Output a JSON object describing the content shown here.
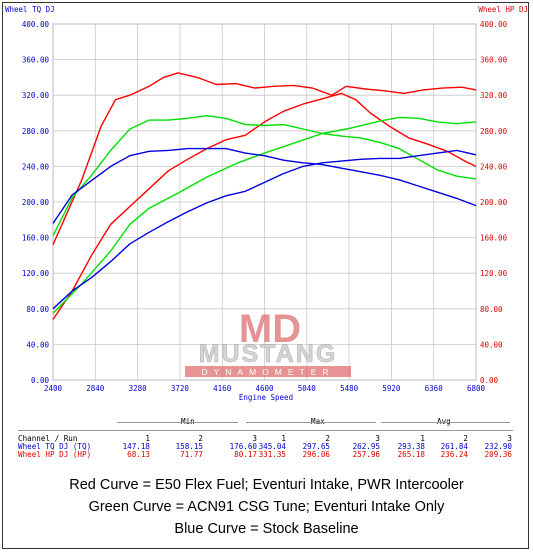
{
  "chart_data": {
    "type": "line",
    "ylabel_left": "Wheel TQ DJ",
    "ylabel_right": "Wheel HP DJ",
    "xlabel": "Engine Speed",
    "xlim": [
      2400,
      6800
    ],
    "ylim": [
      0,
      400
    ],
    "x_ticks": [
      "2400",
      "2840",
      "3280",
      "3720",
      "4160",
      "4600",
      "5040",
      "5480",
      "5920",
      "6360",
      "6800"
    ],
    "y_ticks": [
      "0.00",
      "40.00",
      "80.00",
      "120.00",
      "160.00",
      "200.00",
      "240.00",
      "280.00",
      "320.00",
      "360.00",
      "400.00"
    ],
    "grid": true,
    "series": [
      {
        "name": "Red TQ",
        "color": "#ff0000",
        "points": [
          [
            2400,
            152
          ],
          [
            2700,
            225
          ],
          [
            2900,
            285
          ],
          [
            3050,
            315
          ],
          [
            3200,
            320
          ],
          [
            3400,
            330
          ],
          [
            3550,
            340
          ],
          [
            3700,
            345
          ],
          [
            3900,
            340
          ],
          [
            4100,
            332
          ],
          [
            4300,
            333
          ],
          [
            4500,
            328
          ],
          [
            4700,
            330
          ],
          [
            4900,
            331
          ],
          [
            5100,
            328
          ],
          [
            5300,
            320
          ],
          [
            5450,
            330
          ],
          [
            5650,
            327
          ],
          [
            5850,
            325
          ],
          [
            6050,
            322
          ],
          [
            6250,
            326
          ],
          [
            6450,
            328
          ],
          [
            6650,
            329
          ],
          [
            6800,
            326
          ]
        ]
      },
      {
        "name": "Red HP",
        "color": "#ff0000",
        "points": [
          [
            2400,
            68
          ],
          [
            2600,
            100
          ],
          [
            2800,
            140
          ],
          [
            3000,
            175
          ],
          [
            3200,
            195
          ],
          [
            3400,
            215
          ],
          [
            3600,
            235
          ],
          [
            3800,
            248
          ],
          [
            4000,
            260
          ],
          [
            4200,
            270
          ],
          [
            4400,
            275
          ],
          [
            4600,
            290
          ],
          [
            4800,
            302
          ],
          [
            5000,
            310
          ],
          [
            5200,
            316
          ],
          [
            5400,
            322
          ],
          [
            5550,
            315
          ],
          [
            5700,
            300
          ],
          [
            5900,
            285
          ],
          [
            6100,
            272
          ],
          [
            6300,
            265
          ],
          [
            6500,
            257
          ],
          [
            6700,
            245
          ],
          [
            6800,
            240
          ]
        ]
      },
      {
        "name": "Green TQ",
        "color": "#00e000",
        "points": [
          [
            2400,
            162
          ],
          [
            2600,
            205
          ],
          [
            2800,
            230
          ],
          [
            3000,
            258
          ],
          [
            3200,
            282
          ],
          [
            3400,
            292
          ],
          [
            3600,
            292
          ],
          [
            3800,
            294
          ],
          [
            4000,
            297
          ],
          [
            4200,
            294
          ],
          [
            4400,
            287
          ],
          [
            4600,
            286
          ],
          [
            4800,
            287
          ],
          [
            5000,
            282
          ],
          [
            5200,
            277
          ],
          [
            5400,
            274
          ],
          [
            5600,
            272
          ],
          [
            5800,
            267
          ],
          [
            6000,
            260
          ],
          [
            6200,
            248
          ],
          [
            6400,
            236
          ],
          [
            6600,
            229
          ],
          [
            6800,
            226
          ]
        ]
      },
      {
        "name": "Green HP",
        "color": "#00e000",
        "points": [
          [
            2400,
            75
          ],
          [
            2700,
            108
          ],
          [
            3000,
            145
          ],
          [
            3200,
            175
          ],
          [
            3400,
            193
          ],
          [
            3700,
            210
          ],
          [
            4000,
            228
          ],
          [
            4300,
            243
          ],
          [
            4600,
            255
          ],
          [
            4900,
            266
          ],
          [
            5200,
            277
          ],
          [
            5500,
            283
          ],
          [
            5800,
            291
          ],
          [
            6000,
            295
          ],
          [
            6200,
            294
          ],
          [
            6400,
            290
          ],
          [
            6600,
            288
          ],
          [
            6800,
            290
          ]
        ]
      },
      {
        "name": "Blue TQ",
        "color": "#0000e0",
        "points": [
          [
            2400,
            176
          ],
          [
            2600,
            208
          ],
          [
            2800,
            224
          ],
          [
            3000,
            240
          ],
          [
            3200,
            252
          ],
          [
            3400,
            257
          ],
          [
            3600,
            258
          ],
          [
            3800,
            260
          ],
          [
            4000,
            260
          ],
          [
            4200,
            260
          ],
          [
            4400,
            255
          ],
          [
            4600,
            252
          ],
          [
            4800,
            247
          ],
          [
            5000,
            244
          ],
          [
            5200,
            242
          ],
          [
            5400,
            238
          ],
          [
            5600,
            234
          ],
          [
            5800,
            230
          ],
          [
            6000,
            225
          ],
          [
            6200,
            218
          ],
          [
            6400,
            211
          ],
          [
            6600,
            204
          ],
          [
            6800,
            196
          ]
        ]
      },
      {
        "name": "Blue HP",
        "color": "#0000e0",
        "points": [
          [
            2400,
            80
          ],
          [
            2600,
            100
          ],
          [
            2800,
            115
          ],
          [
            3000,
            133
          ],
          [
            3200,
            153
          ],
          [
            3400,
            166
          ],
          [
            3600,
            178
          ],
          [
            3800,
            189
          ],
          [
            4000,
            199
          ],
          [
            4200,
            207
          ],
          [
            4400,
            212
          ],
          [
            4600,
            222
          ],
          [
            4800,
            232
          ],
          [
            5000,
            240
          ],
          [
            5200,
            244
          ],
          [
            5400,
            246
          ],
          [
            5600,
            248
          ],
          [
            5800,
            249
          ],
          [
            6000,
            249
          ],
          [
            6200,
            252
          ],
          [
            6400,
            255
          ],
          [
            6600,
            258
          ],
          [
            6800,
            253
          ]
        ]
      }
    ]
  },
  "logo": {
    "line1": "MUSTANG",
    "line2": "DYNAMOMETER",
    "mark": "MD"
  },
  "stats": {
    "headers": {
      "min": "Min",
      "max": "Max",
      "avg": "Avg",
      "channel": "Channel / Run"
    },
    "runs": [
      "1",
      "2",
      "3",
      "1",
      "2",
      "3",
      "1",
      "2",
      "3"
    ],
    "rows": [
      {
        "label": "Wheel TQ DJ (TQ)",
        "color": "#0000cc",
        "values": [
          "147.18",
          "158.15",
          "176.60",
          "345.04",
          "297.65",
          "262.95",
          "293.38",
          "261.84",
          "232.90"
        ]
      },
      {
        "label": "Wheel HP DJ (HP)",
        "color": "#dd0000",
        "values": [
          "68.13",
          "71.77",
          "80.17",
          "331.35",
          "296.06",
          "257.96",
          "265.18",
          "236.24",
          "209.36"
        ]
      }
    ]
  },
  "captions": [
    "Red Curve = E50 Flex Fuel; Eventuri Intake, PWR Intercooler",
    "Green Curve = ACN91 CSG Tune; Eventuri Intake Only",
    "Blue Curve = Stock Baseline"
  ],
  "colors": {
    "left_axis": "#0000cc",
    "right_axis": "#dd0000",
    "grid": "#c8c8c8"
  }
}
